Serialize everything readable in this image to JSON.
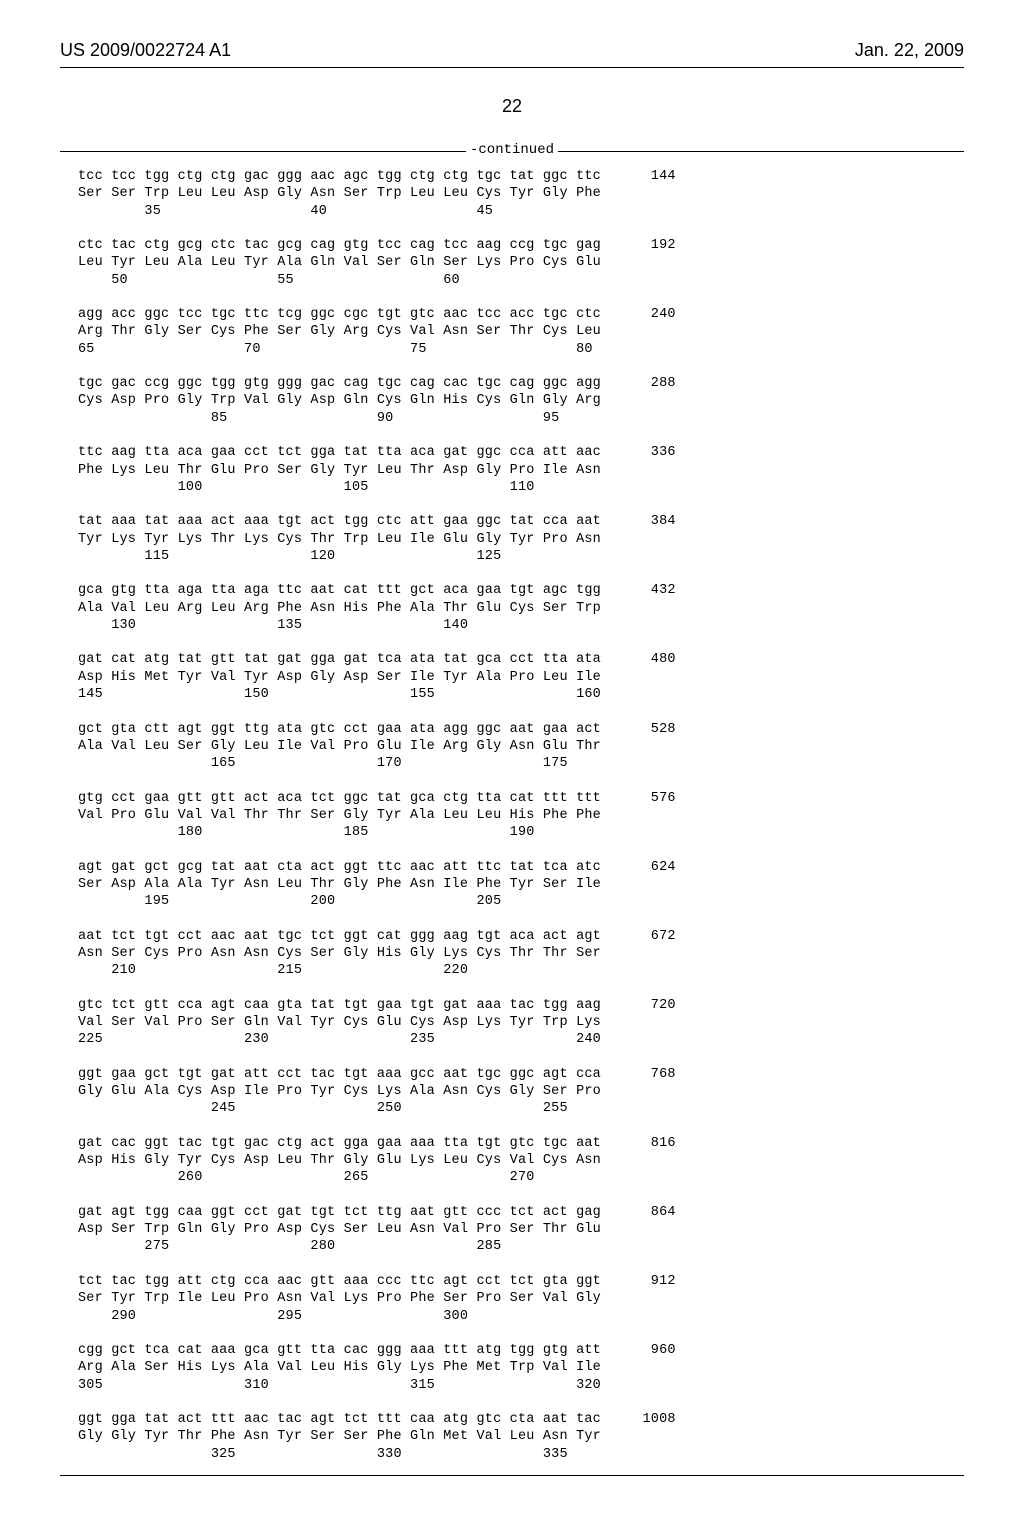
{
  "header": {
    "left": "US 2009/0022724 A1",
    "right": "Jan. 22, 2009"
  },
  "page_number": "22",
  "continued": "-continued",
  "seq": "tcc tcc tgg ctg ctg gac ggg aac agc tgg ctg ctg tgc tat ggc ttc      144\nSer Ser Trp Leu Leu Asp Gly Asn Ser Trp Leu Leu Cys Tyr Gly Phe\n        35                  40                  45\n\nctc tac ctg gcg ctc tac gcg cag gtg tcc cag tcc aag ccg tgc gag      192\nLeu Tyr Leu Ala Leu Tyr Ala Gln Val Ser Gln Ser Lys Pro Cys Glu\n    50                  55                  60\n\nagg acc ggc tcc tgc ttc tcg ggc cgc tgt gtc aac tcc acc tgc ctc      240\nArg Thr Gly Ser Cys Phe Ser Gly Arg Cys Val Asn Ser Thr Cys Leu\n65                  70                  75                  80\n\ntgc gac ccg ggc tgg gtg ggg gac cag tgc cag cac tgc cag ggc agg      288\nCys Asp Pro Gly Trp Val Gly Asp Gln Cys Gln His Cys Gln Gly Arg\n                85                  90                  95\n\nttc aag tta aca gaa cct tct gga tat tta aca gat ggc cca att aac      336\nPhe Lys Leu Thr Glu Pro Ser Gly Tyr Leu Thr Asp Gly Pro Ile Asn\n            100                 105                 110\n\ntat aaa tat aaa act aaa tgt act tgg ctc att gaa ggc tat cca aat      384\nTyr Lys Tyr Lys Thr Lys Cys Thr Trp Leu Ile Glu Gly Tyr Pro Asn\n        115                 120                 125\n\ngca gtg tta aga tta aga ttc aat cat ttt gct aca gaa tgt agc tgg      432\nAla Val Leu Arg Leu Arg Phe Asn His Phe Ala Thr Glu Cys Ser Trp\n    130                 135                 140\n\ngat cat atg tat gtt tat gat gga gat tca ata tat gca cct tta ata      480\nAsp His Met Tyr Val Tyr Asp Gly Asp Ser Ile Tyr Ala Pro Leu Ile\n145                 150                 155                 160\n\ngct gta ctt agt ggt ttg ata gtc cct gaa ata agg ggc aat gaa act      528\nAla Val Leu Ser Gly Leu Ile Val Pro Glu Ile Arg Gly Asn Glu Thr\n                165                 170                 175\n\ngtg cct gaa gtt gtt act aca tct ggc tat gca ctg tta cat ttt ttt      576\nVal Pro Glu Val Val Thr Thr Ser Gly Tyr Ala Leu Leu His Phe Phe\n            180                 185                 190\n\nagt gat gct gcg tat aat cta act ggt ttc aac att ttc tat tca atc      624\nSer Asp Ala Ala Tyr Asn Leu Thr Gly Phe Asn Ile Phe Tyr Ser Ile\n        195                 200                 205\n\naat tct tgt cct aac aat tgc tct ggt cat ggg aag tgt aca act agt      672\nAsn Ser Cys Pro Asn Asn Cys Ser Gly His Gly Lys Cys Thr Thr Ser\n    210                 215                 220\n\ngtc tct gtt cca agt caa gta tat tgt gaa tgt gat aaa tac tgg aag      720\nVal Ser Val Pro Ser Gln Val Tyr Cys Glu Cys Asp Lys Tyr Trp Lys\n225                 230                 235                 240\n\nggt gaa gct tgt gat att cct tac tgt aaa gcc aat tgc ggc agt cca      768\nGly Glu Ala Cys Asp Ile Pro Tyr Cys Lys Ala Asn Cys Gly Ser Pro\n                245                 250                 255\n\ngat cac ggt tac tgt gac ctg act gga gaa aaa tta tgt gtc tgc aat      816\nAsp His Gly Tyr Cys Asp Leu Thr Gly Glu Lys Leu Cys Val Cys Asn\n            260                 265                 270\n\ngat agt tgg caa ggt cct gat tgt tct ttg aat gtt ccc tct act gag      864\nAsp Ser Trp Gln Gly Pro Asp Cys Ser Leu Asn Val Pro Ser Thr Glu\n        275                 280                 285\n\ntct tac tgg att ctg cca aac gtt aaa ccc ttc agt cct tct gta ggt      912\nSer Tyr Trp Ile Leu Pro Asn Val Lys Pro Phe Ser Pro Ser Val Gly\n    290                 295                 300\n\ncgg gct tca cat aaa gca gtt tta cac ggg aaa ttt atg tgg gtg att      960\nArg Ala Ser His Lys Ala Val Leu His Gly Lys Phe Met Trp Val Ile\n305                 310                 315                 320\n\nggt gga tat act ttt aac tac agt tct ttt caa atg gtc cta aat tac     1008\nGly Gly Tyr Thr Phe Asn Tyr Ser Ser Phe Gln Met Val Leu Asn Tyr\n                325                 330                 335"
}
